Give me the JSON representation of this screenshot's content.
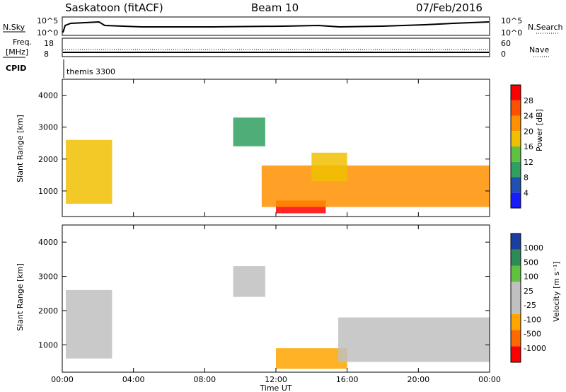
{
  "header": {
    "station": "Saskatoon (fitACF)",
    "beam": "Beam 10",
    "date": "07/Feb/2016"
  },
  "top_panels": {
    "nsky_label": "N.Sky",
    "nsky_ticks": [
      "10^5",
      "10^0"
    ],
    "nsearch_label": "N.Search",
    "nsearch_ticks": [
      "10^5",
      "10^0"
    ],
    "freq_label": "Freq.",
    "freq_unit": "[MHz]",
    "freq_ticks": [
      "18",
      "8"
    ],
    "nave_label": "Nave",
    "nave_ticks": [
      "60",
      "0"
    ],
    "cpid_label": "CPID",
    "cpid_value": "themis 3300"
  },
  "colors": {
    "power": [
      "#1a1aff",
      "#2050b0",
      "#30a060",
      "#60c040",
      "#f0c000",
      "#ff9000",
      "#ff5000",
      "#ff0000"
    ],
    "velocity": [
      "#ff0000",
      "#ff6a00",
      "#ffa500",
      "#c0c0c0",
      "#c0c0c0",
      "#60c040",
      "#2e8b57",
      "#1a3fa0"
    ],
    "ground": "#c0c0c0"
  },
  "chart_data": [
    {
      "type": "heatmap",
      "name": "power",
      "ylabel": "Slant Range [km]",
      "ylim": [
        200,
        4500
      ],
      "xlim_hours": [
        0,
        24
      ],
      "y_ticks": [
        "1000",
        "2000",
        "3000",
        "4000"
      ],
      "x_ticks": [
        "00:00",
        "04:00",
        "08:00",
        "12:00",
        "16:00",
        "20:00",
        "00:00"
      ],
      "colorbar_label": "Power [dB]",
      "colorbar_ticks": [
        "4",
        "8",
        "12",
        "16",
        "20",
        "24",
        "28"
      ],
      "regions": [
        {
          "x0": 0.2,
          "x1": 2.8,
          "y0": 600,
          "y1": 2600,
          "level": 4
        },
        {
          "x0": 9.6,
          "x1": 11.4,
          "y0": 2400,
          "y1": 3300,
          "level": 2
        },
        {
          "x0": 12.0,
          "x1": 14.8,
          "y0": 300,
          "y1": 700,
          "level": 7
        },
        {
          "x0": 11.2,
          "x1": 24.0,
          "y0": 500,
          "y1": 1800,
          "level": 5
        },
        {
          "x0": 14.0,
          "x1": 16.0,
          "y0": 1300,
          "y1": 2200,
          "level": 4
        }
      ]
    },
    {
      "type": "heatmap",
      "name": "velocity",
      "ylabel": "Slant Range [km]",
      "ylim": [
        200,
        4500
      ],
      "xlim_hours": [
        0,
        24
      ],
      "y_ticks": [
        "1000",
        "2000",
        "3000",
        "4000"
      ],
      "x_ticks": [
        "00:00",
        "04:00",
        "08:00",
        "12:00",
        "16:00",
        "20:00",
        "00:00"
      ],
      "xlabel": "Time UT",
      "colorbar_label": "Velocity [m s⁻¹]",
      "colorbar_ticks": [
        "1000",
        "500",
        "100",
        "25",
        "-25",
        "-100",
        "-500",
        "-1000"
      ],
      "regions": [
        {
          "x0": 0.2,
          "x1": 2.8,
          "y0": 600,
          "y1": 2600,
          "level": 3
        },
        {
          "x0": 9.6,
          "x1": 11.4,
          "y0": 2400,
          "y1": 3300,
          "level": 3
        },
        {
          "x0": 12.0,
          "x1": 16.0,
          "y0": 300,
          "y1": 900,
          "level": 2
        },
        {
          "x0": 15.5,
          "x1": 24.0,
          "y0": 500,
          "y1": 1800,
          "level": 3
        }
      ]
    }
  ]
}
